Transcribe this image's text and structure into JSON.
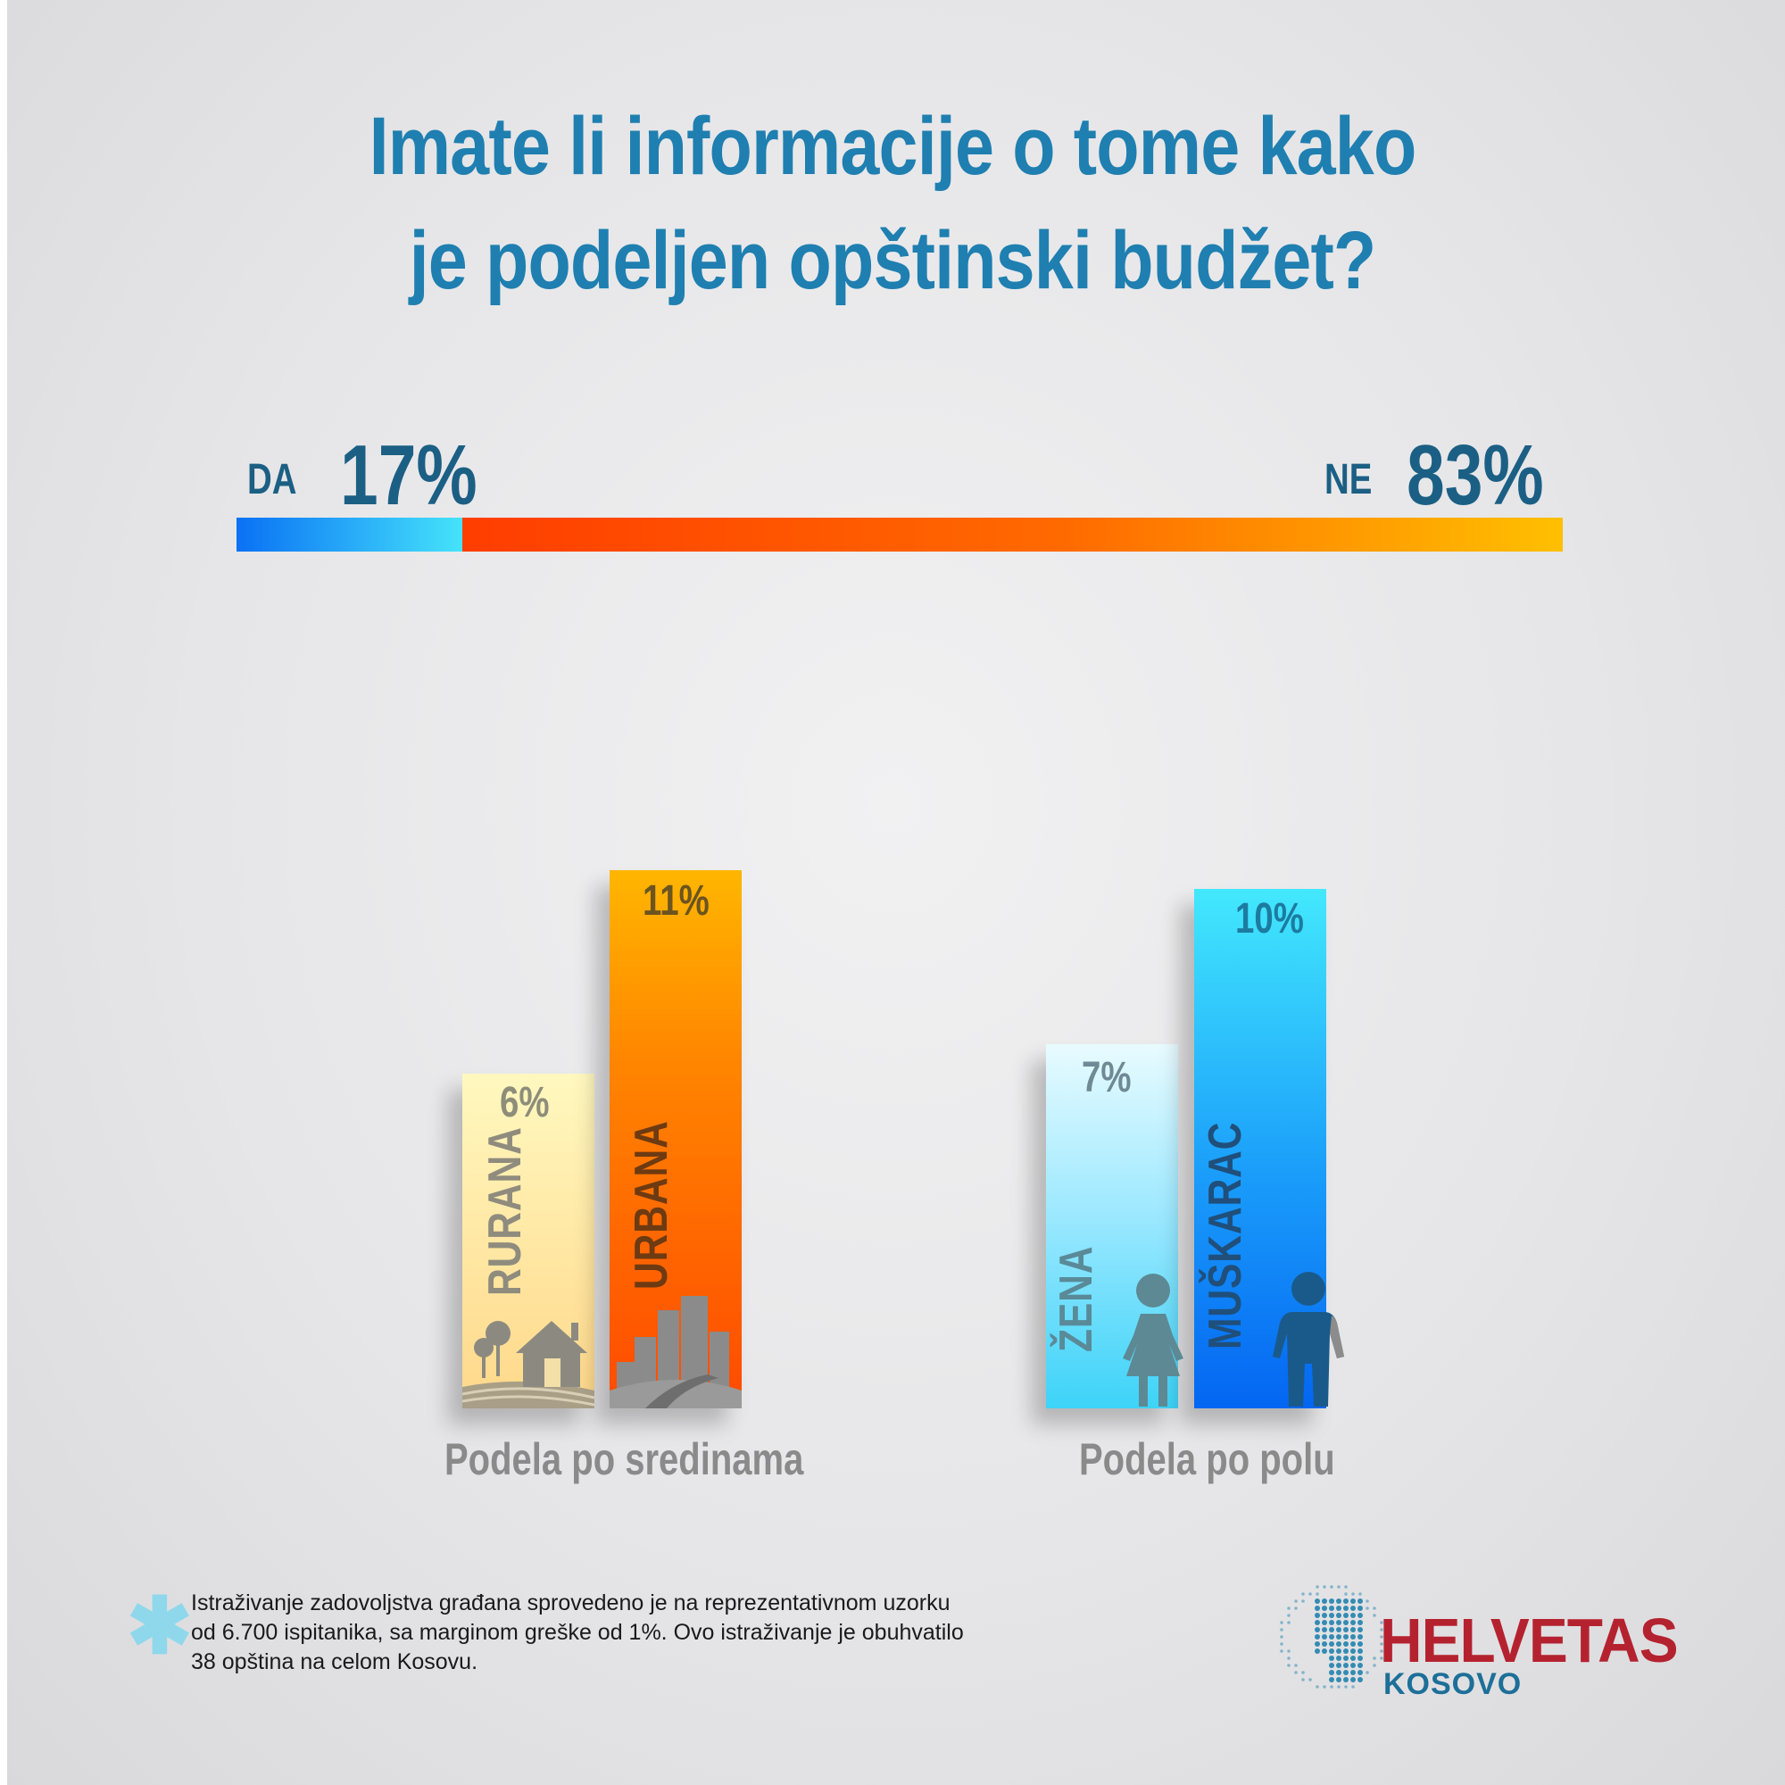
{
  "title": {
    "line1": "Imate li informacije o tome kako",
    "line2": "je podeljen opštinski budžet?"
  },
  "overall": {
    "da_label": "DA",
    "da_value": "17%",
    "ne_label": "NE",
    "ne_value": "83%"
  },
  "chart_data": [
    {
      "type": "bar",
      "title": "",
      "categories": [
        "DA",
        "NE"
      ],
      "values": [
        17,
        83
      ],
      "unit": "%",
      "stacked": true
    },
    {
      "type": "bar",
      "title": "Podela po sredinama",
      "categories": [
        "RURANA",
        "URBANA"
      ],
      "values": [
        6,
        11
      ],
      "value_labels": [
        "6%",
        "11%"
      ],
      "unit": "%"
    },
    {
      "type": "bar",
      "title": "Podela po polu",
      "categories": [
        "ŽENA",
        "MUŠKARAC"
      ],
      "values": [
        7,
        10
      ],
      "value_labels": [
        "7%",
        "10%"
      ],
      "unit": "%"
    }
  ],
  "colors": {
    "title": "#1f7fb0",
    "da_gradient": [
      "#0a71f4",
      "#45e3fb"
    ],
    "ne_gradient": [
      "#ff3d00",
      "#ffc000"
    ],
    "brand": "#b5222f",
    "brand_sub": "#1d6f98"
  },
  "icons": [
    "house-farm-icon",
    "city-road-icon",
    "woman-icon",
    "man-icon",
    "asterisk-icon",
    "globe-dots-icon"
  ],
  "footnote": {
    "line1": "Istraživanje zadovoljstva građana sprovedeno je na reprezentativnom uzorku",
    "line2": "od 6.700 ispitanika, sa marginom greške od 1%. Ovo istraživanje je obuhvatilo",
    "line3": "38 opština na celom Kosovu."
  },
  "brand": {
    "name": "HELVETAS",
    "sub": "KOSOVO"
  }
}
